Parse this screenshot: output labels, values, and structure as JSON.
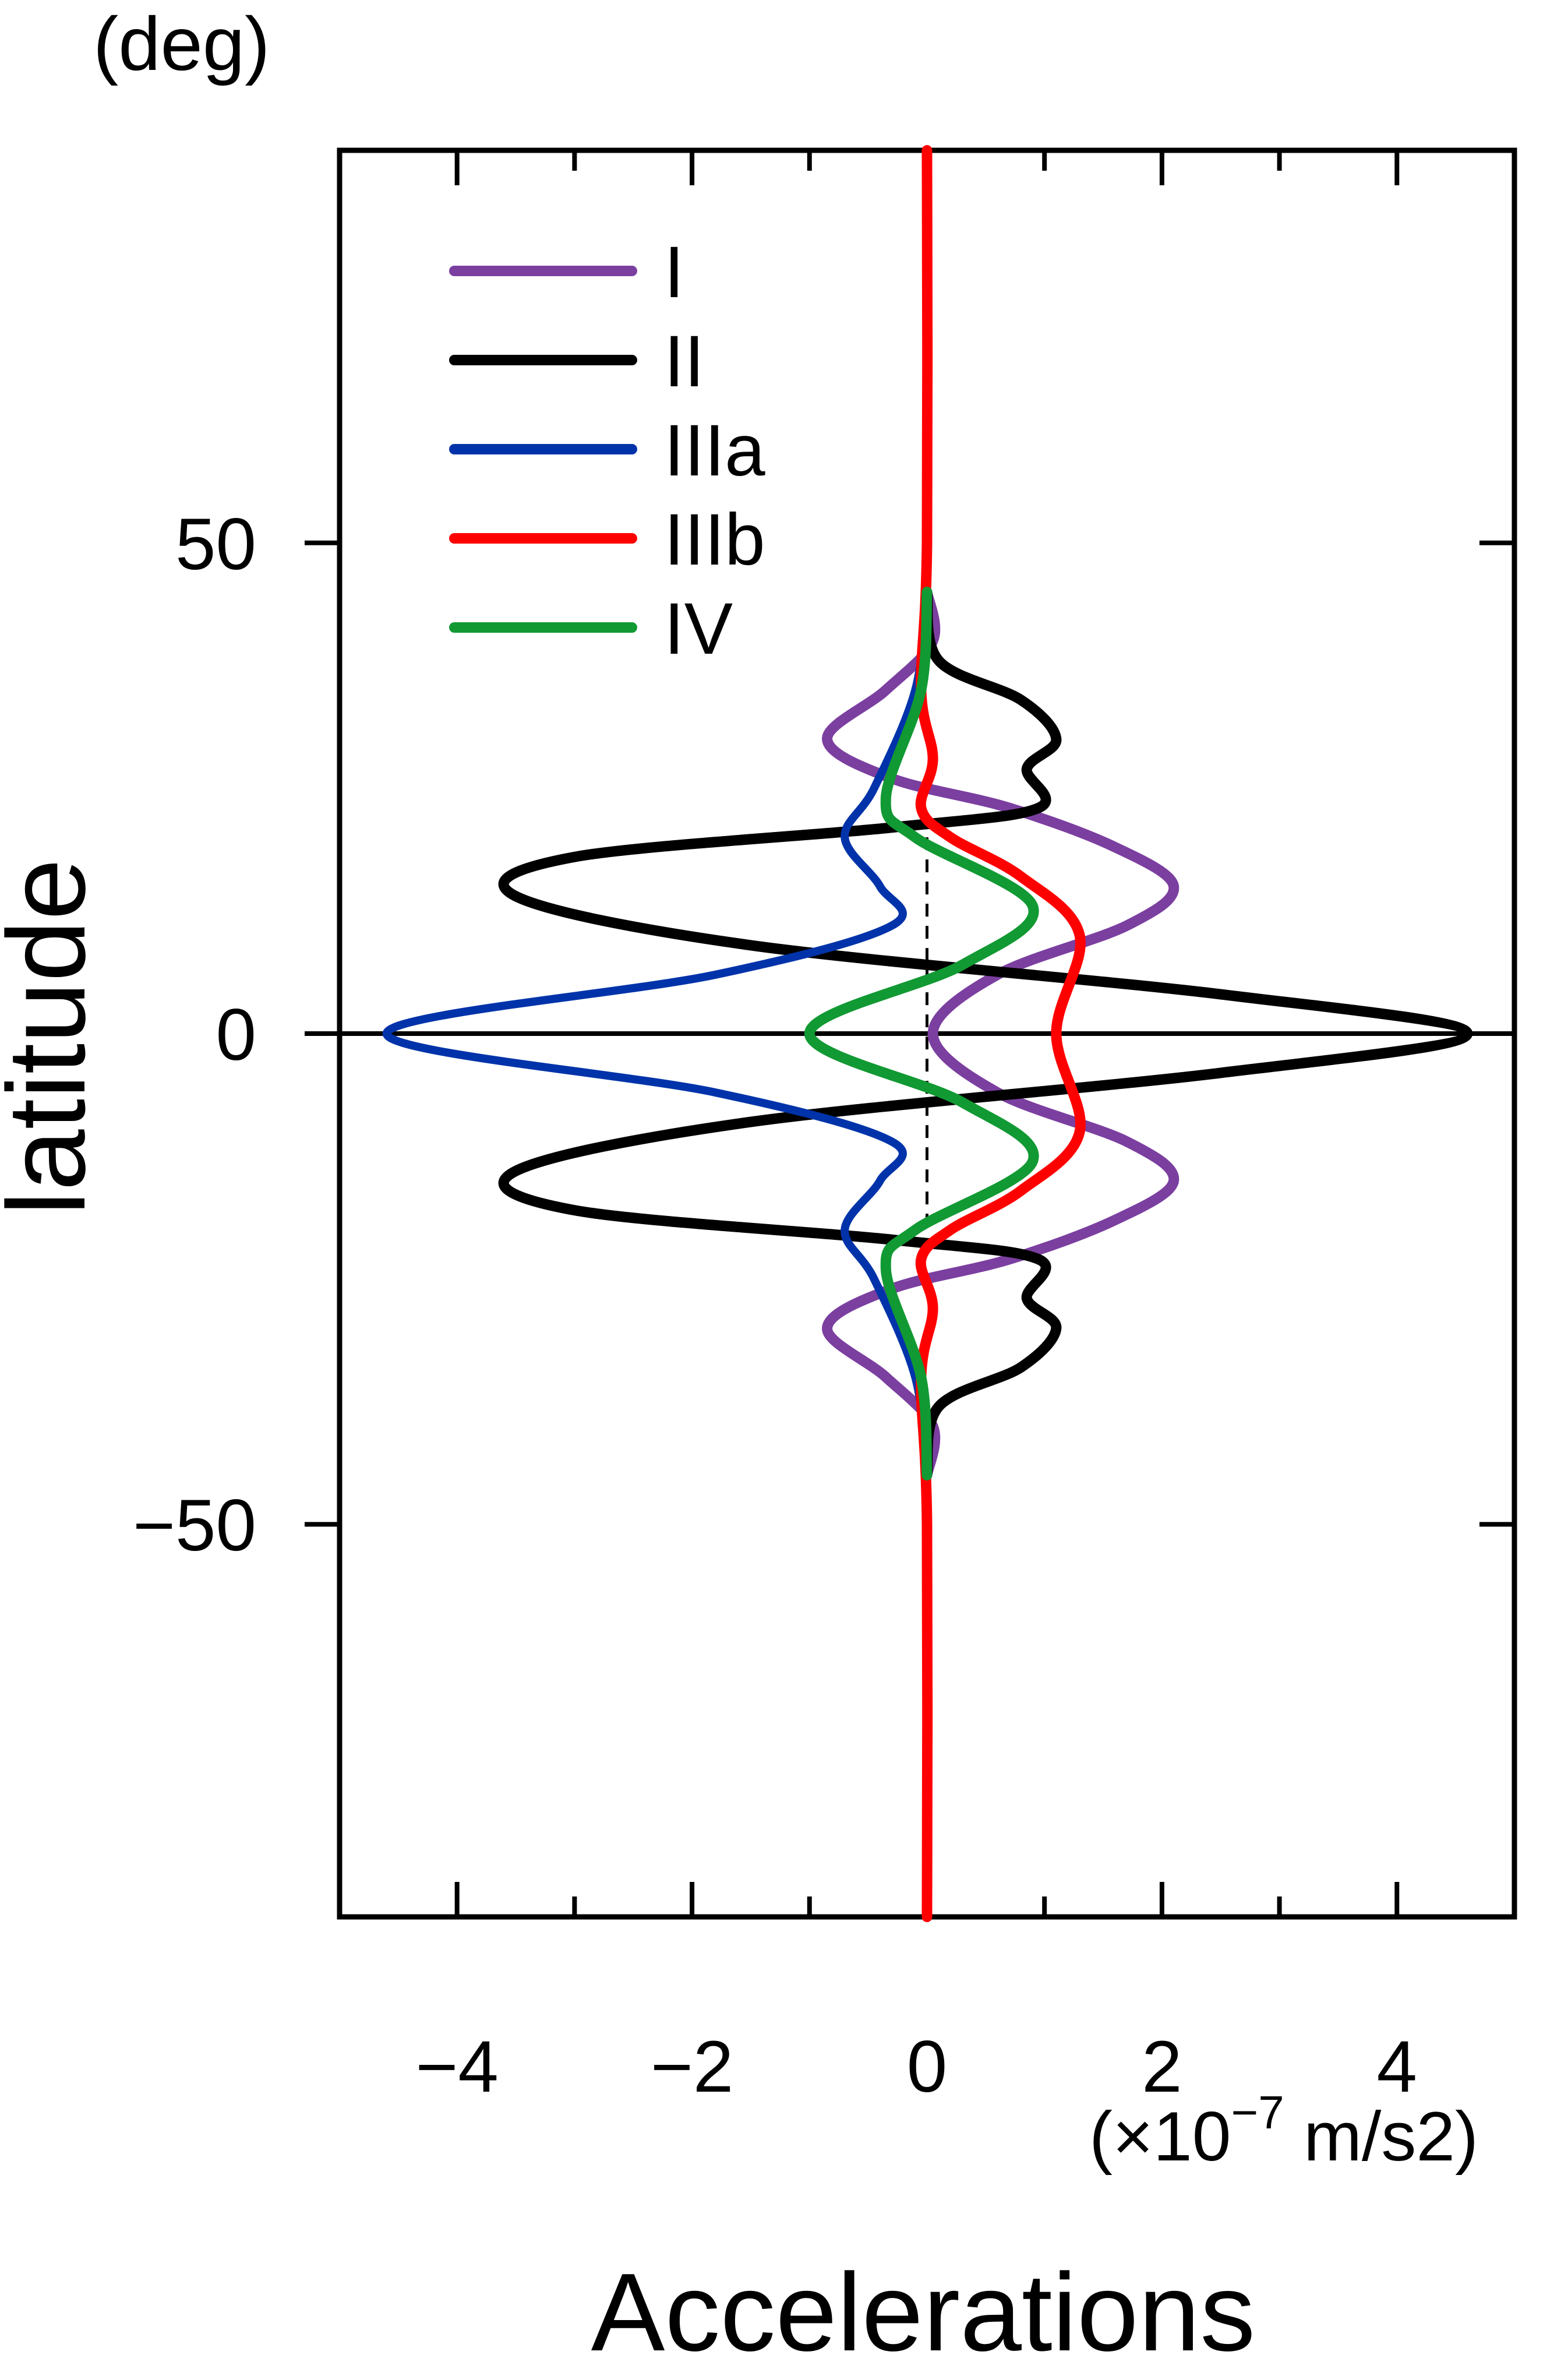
{
  "chart_data": {
    "type": "line",
    "orientation": "vertical",
    "title": "",
    "xlabel": "Accelerations",
    "xunit": "(×10",
    "xunit_exp": "−7",
    "xunit_tail": " m/s2)",
    "ylabel": "latitude",
    "yunit": "(deg)",
    "xlim": [
      -5,
      5
    ],
    "ylim": [
      -90,
      90
    ],
    "xticks": [
      -4,
      -2,
      0,
      2,
      4
    ],
    "xtick_labels": [
      "−4",
      "−2",
      "0",
      "2",
      "4"
    ],
    "yticks": [
      -50,
      0,
      50
    ],
    "ytick_labels": [
      "−50",
      "0",
      "50"
    ],
    "grid": false,
    "legend_position": "top-left",
    "reference_lines": [
      {
        "type": "horizontal",
        "y": 0,
        "style": "solid"
      },
      {
        "type": "vertical",
        "x": 0,
        "y_range": [
          -20,
          20
        ],
        "style": "dashed"
      }
    ],
    "series": [
      {
        "name": "I",
        "color": "#7b3fa0",
        "x": [
          0.0,
          0.05,
          -0.35,
          -0.85,
          -0.3,
          0.7,
          1.6,
          2.1,
          1.7,
          0.6,
          0.05,
          0.6,
          1.7,
          2.1,
          1.6,
          0.7,
          -0.3,
          -0.85,
          -0.35,
          0.05,
          0.0
        ],
        "y": [
          45,
          40,
          35,
          30,
          26,
          23,
          19,
          15,
          11,
          6,
          0,
          -6,
          -11,
          -15,
          -19,
          -23,
          -26,
          -30,
          -35,
          -40,
          -45
        ]
      },
      {
        "name": "II",
        "color": "#000000",
        "x": [
          0.0,
          0.1,
          0.8,
          1.1,
          0.85,
          0.95,
          -0.3,
          -3.0,
          -3.5,
          -1.5,
          2.5,
          4.6,
          2.5,
          -1.5,
          -3.5,
          -3.0,
          -0.3,
          0.95,
          0.85,
          1.1,
          0.8,
          0.1,
          0.0
        ],
        "y": [
          45,
          38,
          34,
          30,
          27,
          23,
          21,
          18,
          14,
          9,
          4,
          0,
          -4,
          -9,
          -14,
          -18,
          -21,
          -23,
          -27,
          -30,
          -34,
          -38,
          -45
        ]
      },
      {
        "name": "IIIa",
        "color": "#0033aa",
        "x": [
          0.0,
          -0.1,
          -0.45,
          -0.7,
          -0.4,
          -0.3,
          -1.8,
          -4.6,
          -1.8,
          -0.3,
          -0.4,
          -0.7,
          -0.45,
          -0.1,
          0.0
        ],
        "y": [
          45,
          35,
          25,
          20,
          15,
          11,
          6,
          0,
          -6,
          -11,
          -15,
          -20,
          -25,
          -35,
          -45
        ]
      },
      {
        "name": "IIIb",
        "color": "#ff0000",
        "x": [
          0.0,
          0.0,
          -0.05,
          0.05,
          -0.05,
          0.2,
          0.8,
          1.3,
          1.1,
          1.3,
          0.8,
          0.2,
          -0.05,
          0.05,
          -0.05,
          0.0,
          0.0
        ],
        "y": [
          90,
          50,
          35,
          28,
          23,
          20,
          16,
          10,
          0,
          -10,
          -16,
          -20,
          -23,
          -28,
          -35,
          -50,
          -90
        ]
      },
      {
        "name": "IV",
        "color": "#119933",
        "x": [
          0.0,
          -0.05,
          -0.35,
          -0.1,
          0.9,
          0.3,
          -1.0,
          0.3,
          0.9,
          -0.1,
          -0.35,
          -0.05,
          0.0
        ],
        "y": [
          45,
          35,
          24,
          20,
          13,
          7,
          0,
          -7,
          -13,
          -20,
          -24,
          -35,
          -45
        ]
      }
    ]
  }
}
